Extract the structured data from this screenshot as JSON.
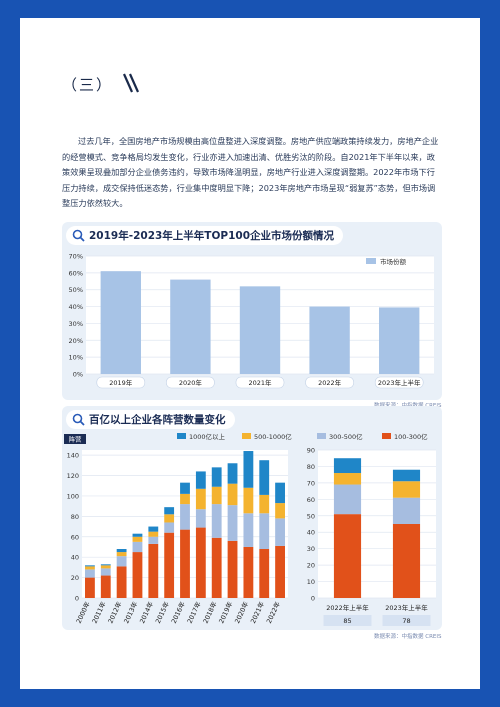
{
  "section": {
    "title": "（三）"
  },
  "paragraph": "过去几年，全国房地产市场规模由高位盘整进入深度调整。房地产供应端政策持续发力，房地产企业的经营模式、竞争格局均发生变化，行业亦进入加速出清、优胜劣汰的阶段。自2021年下半年以来，政策效果呈现叠加部分企业债务违约，导致市场降温明显，房地产行业进入深度调整期。2022年市场下行压力持续，成交保持低迷态势，行业集中度明显下降；2023年房地产市场呈现“弱复苏”态势，但市场调整压力依然较大。",
  "chart1": {
    "title": "2019年-2023年上半年TOP100企业市场份额情况",
    "source": "数据来源：中指数据 CREIS",
    "chart_data": {
      "type": "bar",
      "categories": [
        "2019年",
        "2020年",
        "2021年",
        "2022年",
        "2023年上半年"
      ],
      "series": [
        {
          "name": "市场份额",
          "values": [
            61,
            56,
            52,
            40,
            39.5
          ]
        }
      ],
      "yticks": [
        "0%",
        "10%",
        "20%",
        "30%",
        "40%",
        "50%",
        "60%",
        "70%"
      ],
      "ylim": [
        0,
        70
      ],
      "color": "#a7c3e6",
      "legend": "top-right",
      "grid": true
    }
  },
  "chart2": {
    "title": "百亿以上企业各阵营数量变化",
    "ylabel": "阵营",
    "source": "数据来源：中指数据 CREIS",
    "chart_data": {
      "type": "bar",
      "stacked": true,
      "categories": [
        "2000年",
        "2011年",
        "2012年",
        "2013年",
        "2014年",
        "2015年",
        "2016年",
        "2017年",
        "2018年",
        "2019年",
        "2020年",
        "2021年",
        "2022年"
      ],
      "series": [
        {
          "name": "100-300亿",
          "color": "#e1511a",
          "values": [
            20,
            22,
            31,
            45,
            53,
            64,
            67,
            69,
            59,
            56,
            50,
            48,
            51
          ]
        },
        {
          "name": "300-500亿",
          "color": "#a6bde0",
          "values": [
            8,
            7,
            10,
            10,
            7,
            10,
            25,
            18,
            33,
            35,
            33,
            35,
            27
          ]
        },
        {
          "name": "500-1000亿",
          "color": "#f4b32f",
          "values": [
            3,
            3,
            4,
            5,
            5,
            8,
            10,
            20,
            17,
            21,
            25,
            18,
            15
          ]
        },
        {
          "name": "1000亿以上",
          "color": "#1f86c8",
          "values": [
            1,
            1,
            3,
            3,
            5,
            7,
            11,
            17,
            19,
            20,
            36,
            34,
            20
          ]
        }
      ],
      "yticks": [
        "0",
        "20",
        "40",
        "60",
        "80",
        "100",
        "120",
        "140"
      ],
      "ylim": [
        0,
        145
      ],
      "legend": "top"
    },
    "chart_data_right": {
      "type": "bar",
      "stacked": true,
      "categories": [
        "2022年上半年",
        "2023年上半年"
      ],
      "totals": [
        "85",
        "78"
      ],
      "series": [
        {
          "name": "100-300亿",
          "values": [
            51,
            45
          ]
        },
        {
          "name": "300-500亿",
          "values": [
            18,
            16
          ]
        },
        {
          "name": "500-1000亿",
          "values": [
            7,
            10
          ]
        },
        {
          "name": "1000亿以上",
          "values": [
            9,
            7
          ]
        }
      ],
      "yticks": [
        "0",
        "10",
        "20",
        "30",
        "40",
        "50",
        "60",
        "70",
        "80",
        "90"
      ],
      "ylim": [
        0,
        90
      ]
    }
  }
}
